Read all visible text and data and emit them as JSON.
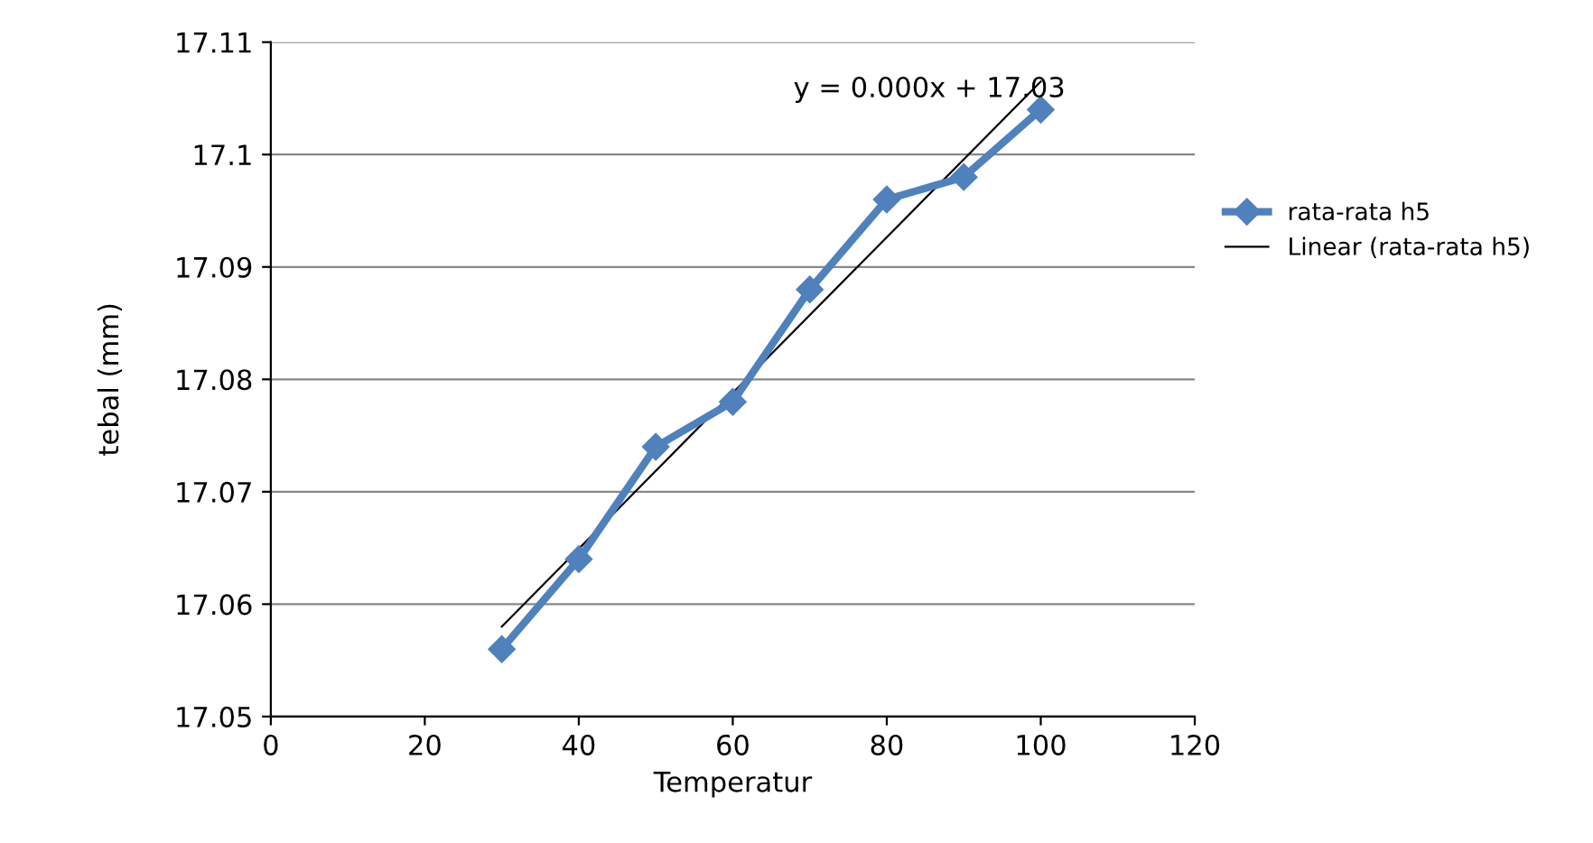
{
  "chart_data": {
    "type": "line",
    "xlabel": "Temperatur",
    "ylabel": "tebal (mm)",
    "x": [
      30,
      40,
      50,
      60,
      70,
      80,
      90,
      100
    ],
    "series": [
      {
        "name": "rata-rata h5",
        "color": "#4f81bd",
        "marker": "diamond",
        "values": [
          17.056,
          17.064,
          17.074,
          17.078,
          17.088,
          17.096,
          17.098,
          17.104
        ]
      },
      {
        "name": "Linear (rata-rata h5)",
        "color": "#000000",
        "marker": "none",
        "x": [
          30,
          100
        ],
        "values": [
          17.058,
          17.1065
        ]
      }
    ],
    "annotations": [
      "y = 0.000x + 17.03"
    ],
    "xlim": [
      0,
      120
    ],
    "xticks": [
      0,
      20,
      40,
      60,
      80,
      100,
      120
    ],
    "ylim": [
      17.05,
      17.11
    ],
    "yticks": [
      17.05,
      17.06,
      17.07,
      17.08,
      17.09,
      17.1,
      17.11
    ],
    "grid": "y",
    "legend": "right"
  }
}
